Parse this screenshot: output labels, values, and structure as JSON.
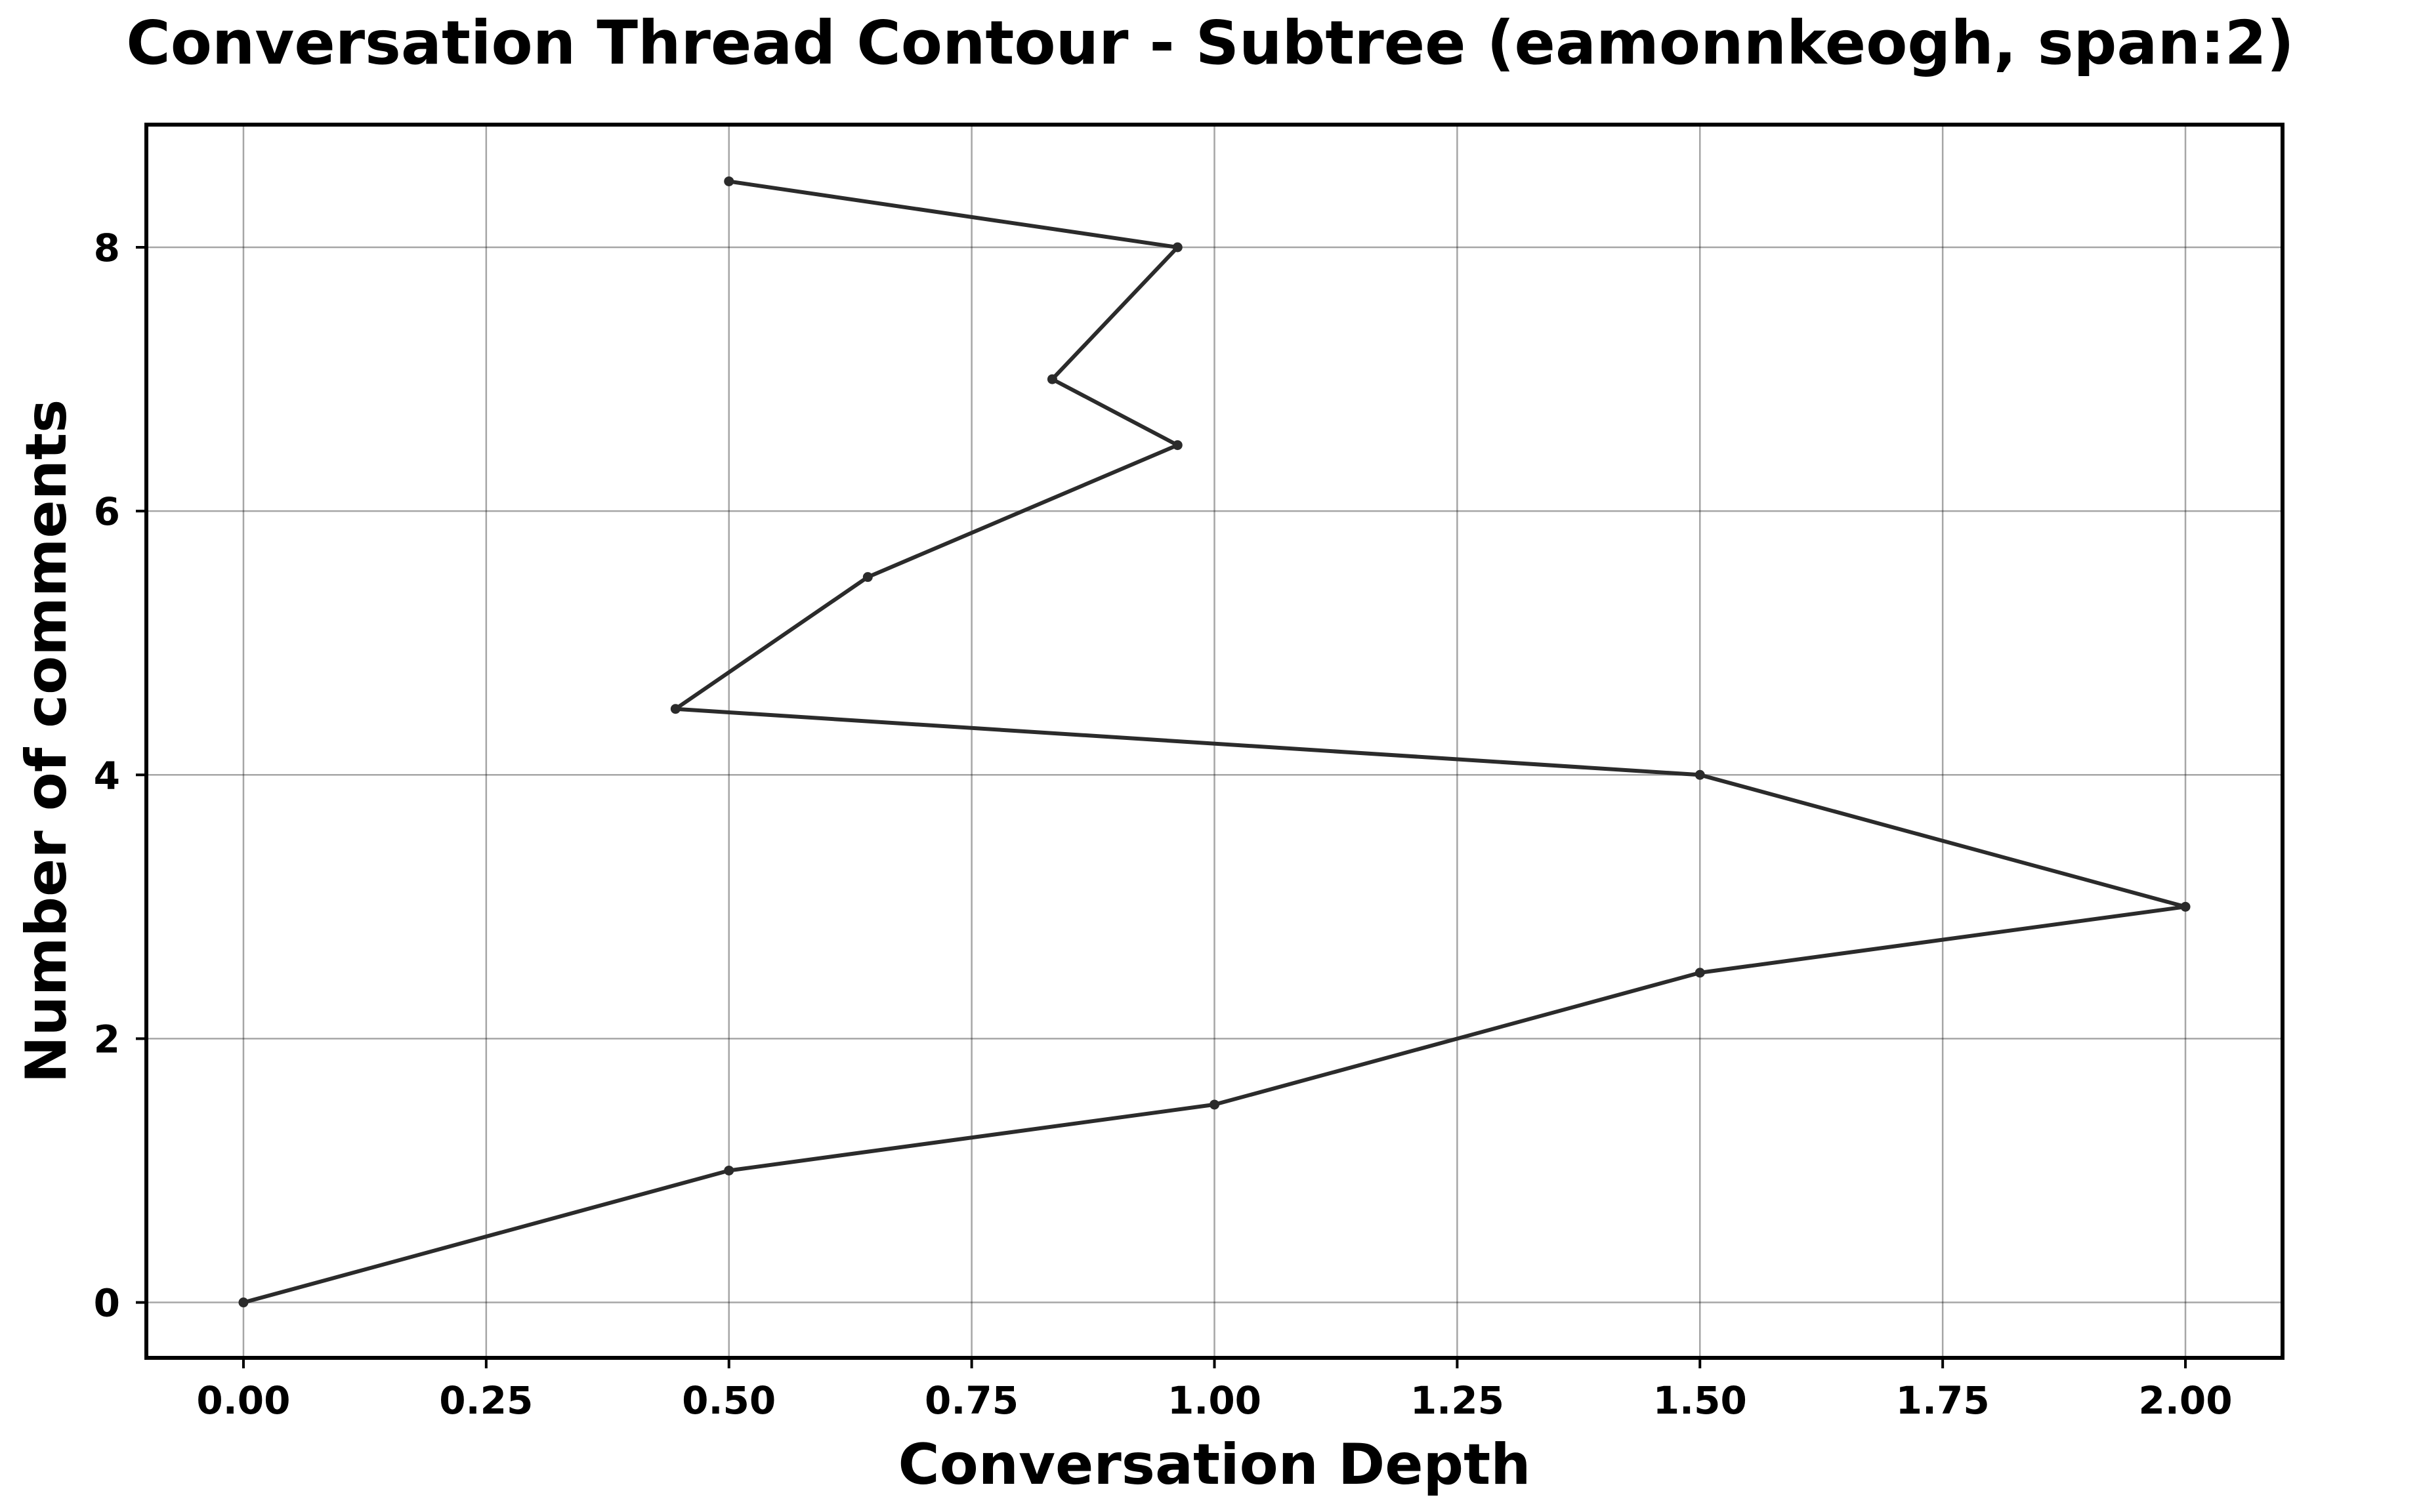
{
  "chart_data": {
    "type": "line",
    "title": "Conversation Thread Contour  - Subtree (eamonnkeogh, span:2)",
    "xlabel": "Conversation Depth",
    "ylabel": "Number of comments",
    "xlim": [
      -0.1,
      2.1
    ],
    "ylim": [
      -0.42,
      8.93
    ],
    "xticks": [
      0.0,
      0.25,
      0.5,
      0.75,
      1.0,
      1.25,
      1.5,
      1.75,
      2.0
    ],
    "xtick_labels": [
      "0.00",
      "0.25",
      "0.50",
      "0.75",
      "1.00",
      "1.25",
      "1.50",
      "1.75",
      "2.00"
    ],
    "yticks": [
      0,
      2,
      4,
      6,
      8
    ],
    "ytick_labels": [
      "0",
      "2",
      "4",
      "6",
      "8"
    ],
    "grid": true,
    "series": [
      {
        "color": "#2b2b2b",
        "x": [
          0.0,
          0.5,
          1.0,
          1.5,
          2.0,
          1.5,
          0.445,
          0.643,
          0.962,
          0.833,
          0.962,
          0.5
        ],
        "y": [
          0,
          1,
          1.5,
          2.5,
          3,
          4,
          4.5,
          5.5,
          6.5,
          7,
          8,
          8.5
        ]
      }
    ]
  }
}
